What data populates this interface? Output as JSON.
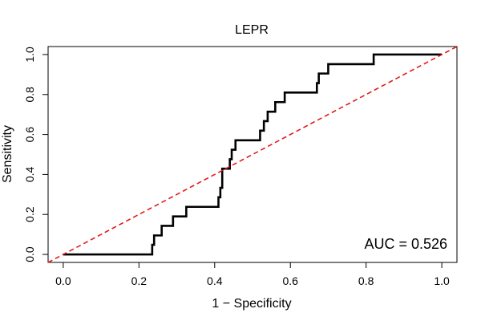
{
  "chart_data": {
    "type": "line",
    "title": "LEPR",
    "xlabel": "1 − Specificity",
    "ylabel": "Sensitivity",
    "xlim": [
      -0.04,
      1.04
    ],
    "ylim": [
      -0.04,
      1.04
    ],
    "x_ticks": [
      0.0,
      0.2,
      0.4,
      0.6,
      0.8,
      1.0
    ],
    "y_ticks": [
      0.0,
      0.2,
      0.4,
      0.6,
      0.8,
      1.0
    ],
    "x_tick_labels": [
      "0.0",
      "0.2",
      "0.4",
      "0.6",
      "0.8",
      "1.0"
    ],
    "y_tick_labels": [
      "0.0",
      "0.2",
      "0.4",
      "0.6",
      "0.8",
      "1.0"
    ],
    "grid": false,
    "series": [
      {
        "style": "solid",
        "color": "#000000",
        "points": [
          [
            0.0,
            0.0
          ],
          [
            0.235,
            0.0
          ],
          [
            0.235,
            0.048
          ],
          [
            0.24,
            0.048
          ],
          [
            0.24,
            0.095
          ],
          [
            0.26,
            0.095
          ],
          [
            0.26,
            0.143
          ],
          [
            0.29,
            0.143
          ],
          [
            0.29,
            0.19
          ],
          [
            0.325,
            0.19
          ],
          [
            0.325,
            0.238
          ],
          [
            0.41,
            0.238
          ],
          [
            0.41,
            0.286
          ],
          [
            0.415,
            0.286
          ],
          [
            0.415,
            0.333
          ],
          [
            0.42,
            0.333
          ],
          [
            0.42,
            0.429
          ],
          [
            0.44,
            0.429
          ],
          [
            0.44,
            0.476
          ],
          [
            0.445,
            0.476
          ],
          [
            0.445,
            0.524
          ],
          [
            0.455,
            0.524
          ],
          [
            0.455,
            0.571
          ],
          [
            0.52,
            0.571
          ],
          [
            0.52,
            0.619
          ],
          [
            0.53,
            0.619
          ],
          [
            0.53,
            0.667
          ],
          [
            0.54,
            0.667
          ],
          [
            0.54,
            0.714
          ],
          [
            0.56,
            0.714
          ],
          [
            0.56,
            0.762
          ],
          [
            0.585,
            0.762
          ],
          [
            0.585,
            0.81
          ],
          [
            0.67,
            0.81
          ],
          [
            0.67,
            0.857
          ],
          [
            0.675,
            0.857
          ],
          [
            0.675,
            0.905
          ],
          [
            0.7,
            0.905
          ],
          [
            0.7,
            0.952
          ],
          [
            0.82,
            0.952
          ],
          [
            0.82,
            1.0
          ],
          [
            1.0,
            1.0
          ]
        ]
      },
      {
        "style": "dashed",
        "color": "#e41a1c",
        "points": [
          [
            -0.04,
            -0.04
          ],
          [
            1.04,
            1.04
          ]
        ]
      }
    ],
    "annotation": "AUC = 0.526"
  }
}
